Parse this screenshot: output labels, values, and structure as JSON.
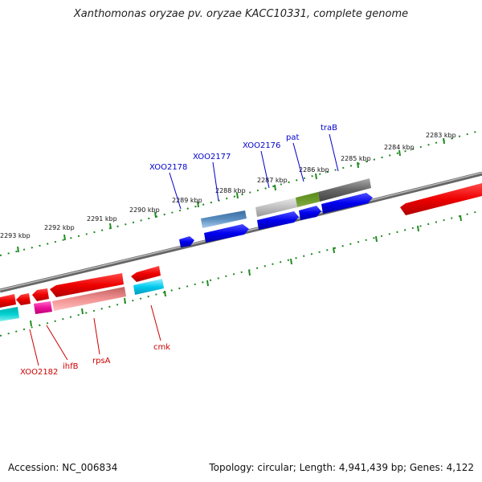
{
  "title": "Xanthomonas oryzae pv. oryzae KACC10331, complete genome",
  "footer": {
    "accession": "Accession: NC_006834",
    "topology": "Topology: circular; Length: 4,941,439 bp; Genes: 4,122"
  },
  "scale": {
    "ticks": [
      "2283 kbp",
      "2284 kbp",
      "2285 kbp",
      "2286 kbp",
      "2287 kbp",
      "2288 kbp",
      "2289 kbp",
      "2290 kbp",
      "2291 kbp",
      "2292 kbp",
      "2293 kbp"
    ]
  },
  "genes": {
    "top": [
      "XOO2178",
      "XOO2177",
      "XOO2176",
      "pat",
      "traB"
    ],
    "bottom": [
      "XOO2182",
      "ihfB",
      "rpsA",
      "cmk"
    ]
  },
  "colors": {
    "forward": "#0000ee",
    "reverse": "#ee0000",
    "backbone": "#808080",
    "ticks": "#228b22"
  }
}
